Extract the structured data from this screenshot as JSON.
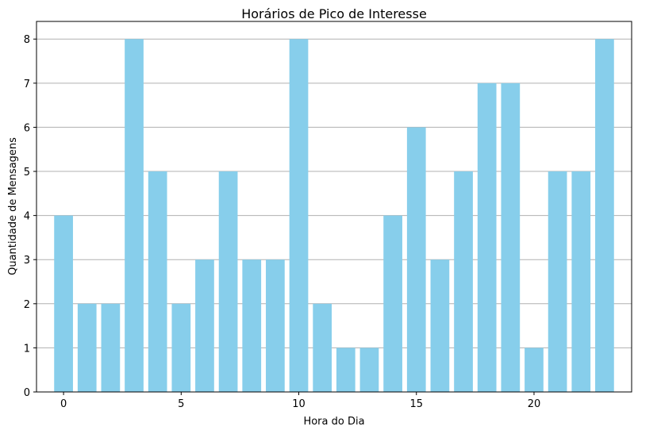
{
  "chart_data": {
    "type": "bar",
    "title": "Horários de Pico de Interesse",
    "xlabel": "Hora do Dia",
    "ylabel": "Quantidade de Mensagens",
    "x": [
      0,
      1,
      2,
      3,
      4,
      5,
      6,
      7,
      8,
      9,
      10,
      11,
      12,
      13,
      14,
      15,
      16,
      17,
      18,
      19,
      20,
      21,
      22,
      23
    ],
    "values": [
      4,
      2,
      2,
      8,
      5,
      2,
      3,
      5,
      3,
      3,
      8,
      2,
      1,
      1,
      4,
      6,
      3,
      5,
      7,
      7,
      1,
      5,
      5,
      8
    ],
    "xticks": [
      0,
      5,
      10,
      15,
      20
    ],
    "yticks": [
      0,
      1,
      2,
      3,
      4,
      5,
      6,
      7,
      8
    ],
    "xlim": [
      -1.15,
      24.15
    ],
    "ylim": [
      0,
      8.4
    ],
    "grid": "y",
    "bar_color": "#87CEEB",
    "grid_color": "#b0b0b0"
  }
}
